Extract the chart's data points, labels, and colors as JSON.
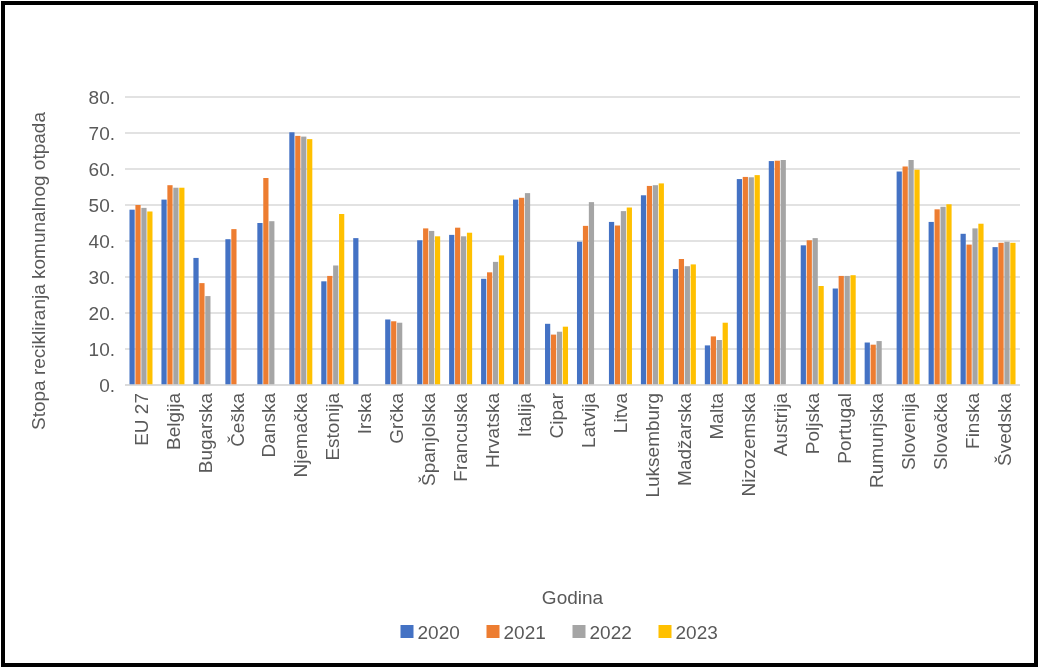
{
  "chart_data": {
    "type": "bar",
    "ylabel": "Stopa recikliranja komunalnog otpada",
    "xlabel": "Godina",
    "categories": [
      "EU 27",
      "Belgija",
      "Bugarska",
      "Češka",
      "Danska",
      "Njemačka",
      "Estonija",
      "Irska",
      "Grčka",
      "Španjolska",
      "Francuska",
      "Hrvatska",
      "Italija",
      "Cipar",
      "Latvija",
      "Litva",
      "Luksemburg",
      "Madžarska",
      "Malta",
      "Nizozemska",
      "Austrija",
      "Poljska",
      "Portugal",
      "Rumunjska",
      "Slovenija",
      "Slovačka",
      "Finska",
      "Švedska"
    ],
    "series": [
      {
        "name": "2020",
        "color": "#4472c4",
        "values": [
          48.7,
          51.5,
          35.3,
          40.5,
          45,
          70.2,
          28.8,
          40.8,
          18.2,
          40.2,
          41.7,
          29.5,
          51.5,
          17,
          39.8,
          45.3,
          52.7,
          32.2,
          11,
          57.2,
          62.2,
          38.8,
          26.8,
          11.8,
          59.3,
          45.3,
          42,
          38.3
        ]
      },
      {
        "name": "2021",
        "color": "#ed7d31",
        "values": [
          50,
          55.5,
          28.3,
          43.3,
          57.5,
          69.2,
          30.3,
          null,
          17.7,
          43.5,
          43.7,
          31.3,
          52,
          14,
          44.2,
          44.3,
          55.3,
          35,
          13.5,
          57.8,
          62.3,
          40.2,
          30.3,
          11.2,
          60.7,
          48.8,
          39,
          39.5
        ]
      },
      {
        "name": "2022",
        "color": "#a5a5a5",
        "values": [
          49.2,
          54.8,
          24.7,
          null,
          45.5,
          69,
          33.2,
          null,
          17.3,
          42.8,
          41.3,
          34.2,
          53.3,
          14.8,
          50.8,
          48.3,
          55.5,
          33,
          12.5,
          57.7,
          62.5,
          40.8,
          30.3,
          12.2,
          62.5,
          49.5,
          43.5,
          39.8
        ]
      },
      {
        "name": "2023",
        "color": "#ffc000",
        "values": [
          48.2,
          54.8,
          null,
          null,
          null,
          68.3,
          47.5,
          null,
          null,
          41.3,
          42.3,
          36,
          null,
          16.2,
          null,
          49.3,
          56,
          33.5,
          17.3,
          58.3,
          null,
          27.5,
          30.5,
          null,
          59.8,
          50.2,
          44.8,
          39.5
        ]
      }
    ],
    "ylim": [
      0,
      80
    ],
    "yticks": [
      {
        "value": 0,
        "label": "0."
      },
      {
        "value": 10,
        "label": "10."
      },
      {
        "value": 20,
        "label": "20."
      },
      {
        "value": 30,
        "label": "30."
      },
      {
        "value": 40,
        "label": "40."
      },
      {
        "value": 50,
        "label": "50."
      },
      {
        "value": 60,
        "label": "60."
      },
      {
        "value": 70,
        "label": "70."
      },
      {
        "value": 80,
        "label": "80."
      }
    ],
    "grid": "y",
    "legend": "bottom"
  }
}
